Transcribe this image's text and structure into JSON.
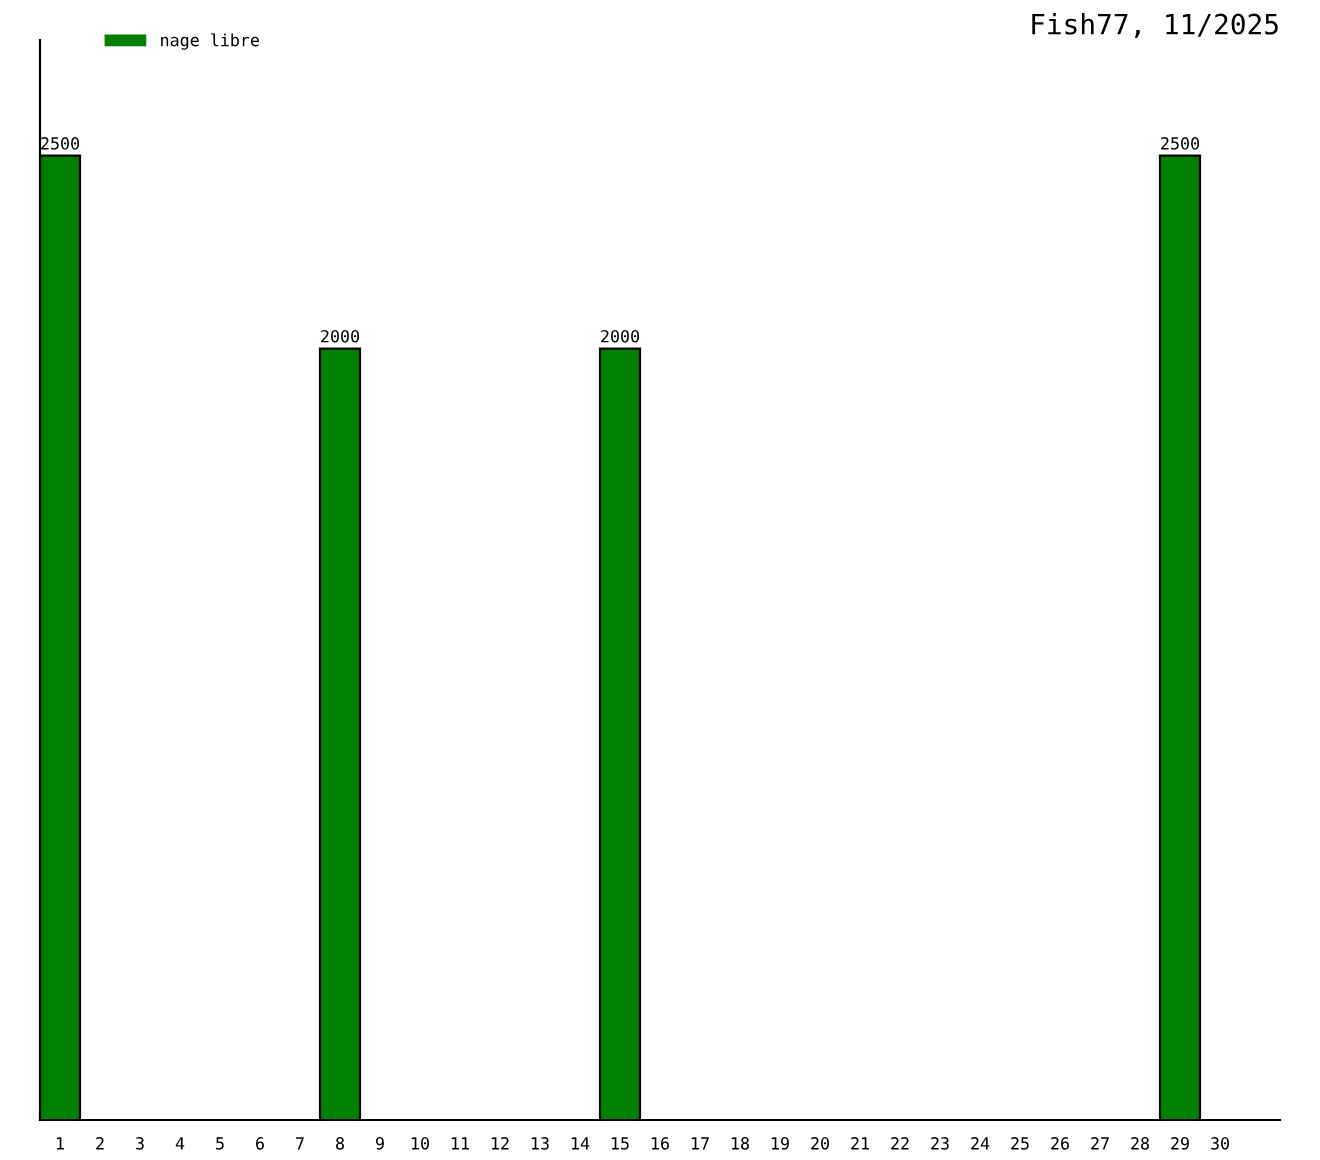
{
  "chart_data": {
    "type": "bar",
    "title": "Fish77, 11/2025",
    "categories": [
      "1",
      "2",
      "3",
      "4",
      "5",
      "6",
      "7",
      "8",
      "9",
      "10",
      "11",
      "12",
      "13",
      "14",
      "15",
      "16",
      "17",
      "18",
      "19",
      "20",
      "21",
      "22",
      "23",
      "24",
      "25",
      "26",
      "27",
      "28",
      "29",
      "30"
    ],
    "series": [
      {
        "name": "nage libre",
        "color": "#008000",
        "values": [
          2500,
          null,
          null,
          null,
          null,
          null,
          null,
          2000,
          null,
          null,
          null,
          null,
          null,
          null,
          2000,
          null,
          null,
          null,
          null,
          null,
          null,
          null,
          null,
          null,
          null,
          null,
          null,
          null,
          2500,
          null
        ],
        "value_labels": [
          "2500",
          null,
          null,
          null,
          null,
          null,
          null,
          "2000",
          null,
          null,
          null,
          null,
          null,
          null,
          "2000",
          null,
          null,
          null,
          null,
          null,
          null,
          null,
          null,
          null,
          null,
          null,
          null,
          null,
          "2500",
          null
        ]
      }
    ],
    "ylim": [
      0,
      2800
    ],
    "tick_labels": "x",
    "grid": false,
    "legend": "top left"
  }
}
